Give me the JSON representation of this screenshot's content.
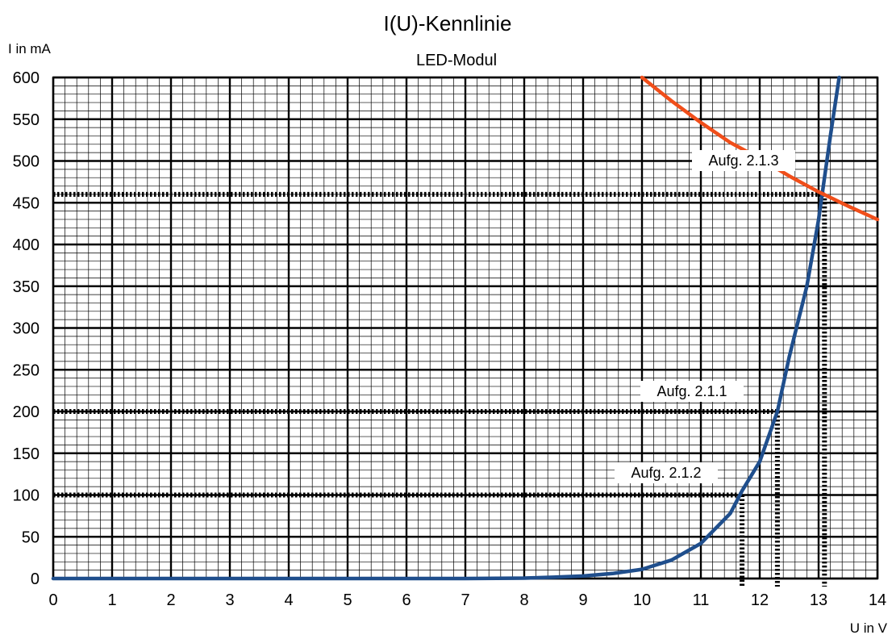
{
  "chart_data": {
    "type": "line",
    "title": "I(U)-Kennlinie",
    "subtitle": "LED-Modul",
    "xlabel": "U in V",
    "ylabel": "I in mA",
    "xlim": [
      0,
      14
    ],
    "ylim": [
      0,
      600
    ],
    "x_major_step": 1,
    "y_major_step": 50,
    "x_minor_per_major": 5,
    "y_minor_per_major": 5,
    "grid": true,
    "x_ticks": [
      "0",
      "1",
      "2",
      "3",
      "4",
      "5",
      "6",
      "7",
      "8",
      "9",
      "10",
      "11",
      "12",
      "13",
      "14"
    ],
    "y_ticks": [
      "0",
      "50",
      "100",
      "150",
      "200",
      "250",
      "300",
      "350",
      "400",
      "450",
      "500",
      "550",
      "600"
    ],
    "series": [
      {
        "color": "#1f4e8c",
        "x": [
          0,
          7,
          8,
          8.5,
          9,
          9.5,
          10,
          10.5,
          11,
          11.5,
          11.7,
          12,
          12.3,
          12.5,
          12.8,
          13.0,
          13.2,
          13.35
        ],
        "y": [
          0,
          0,
          0.5,
          1.5,
          3,
          6,
          11,
          22,
          42,
          78,
          105,
          140,
          200,
          265,
          350,
          430,
          530,
          600
        ]
      },
      {
        "color": "#f04e1a",
        "x": [
          10,
          10.5,
          11,
          11.5,
          12,
          12.5,
          13,
          13.5,
          14
        ],
        "y": [
          600,
          572,
          546,
          522,
          503,
          482,
          463,
          446,
          430
        ]
      }
    ],
    "annotations": [
      {
        "label": "Aufg. 2.1.3",
        "current": 460,
        "voltage": 13.1
      },
      {
        "label": "Aufg. 2.1.1",
        "current": 200,
        "voltage": 12.3
      },
      {
        "label": "Aufg. 2.1.2",
        "current": 100,
        "voltage": 11.7
      }
    ],
    "reference_line_color": "#000000"
  }
}
